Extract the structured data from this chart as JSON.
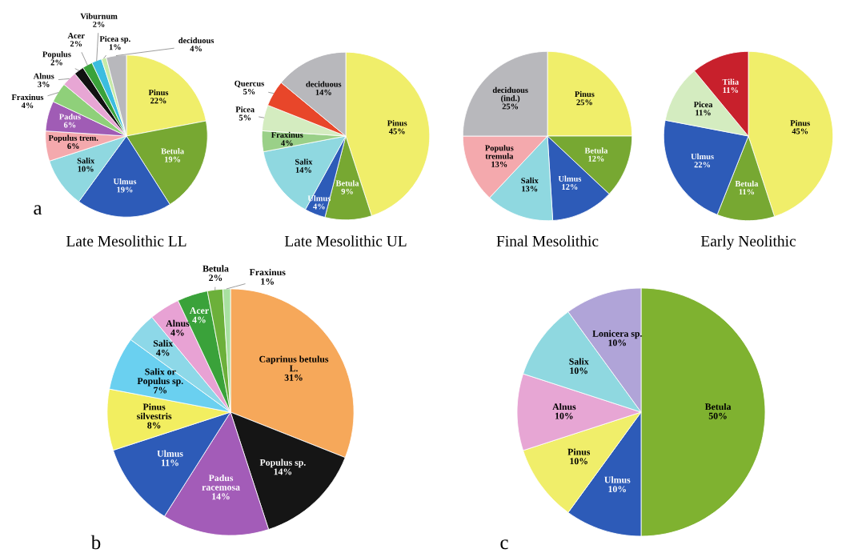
{
  "chart_data": [
    {
      "type": "pie",
      "title": "Late Mesolithic LL",
      "annotations": [
        "a"
      ],
      "data_labels": true,
      "categories": [
        "Pinus",
        "Betula",
        "Ulmus",
        "Salix",
        "Populus trem.",
        "Padus",
        "Fraxinus",
        "Alnus",
        "Populus",
        "Acer",
        "Viburnum",
        "Picea sp.",
        "deciduous"
      ],
      "values": [
        22,
        19,
        19,
        10,
        6,
        6,
        4,
        3,
        2,
        2,
        2,
        1,
        4
      ],
      "value_labels": [
        "22%",
        "19%",
        "19%",
        "10%",
        "6%",
        "6%",
        "4%",
        "3%",
        "2%",
        "2%",
        "2%",
        "1%",
        "4%"
      ],
      "colors": [
        "#f0ee6a",
        "#77a832",
        "#2d5bb8",
        "#8fd8e0",
        "#f4a9ad",
        "#a05cb5",
        "#8fd07a",
        "#e7a6d4",
        "#111111",
        "#3aa23a",
        "#3bbde0",
        "#c7eaa8",
        "#b8b8bc"
      ]
    },
    {
      "type": "pie",
      "title": "Late Mesolithic UL",
      "data_labels": true,
      "categories": [
        "Pinus",
        "Betula",
        "Ulmus",
        "Salix",
        "Fraxinus",
        "Picea",
        "Quercus",
        "deciduous"
      ],
      "values": [
        45,
        9,
        4,
        14,
        4,
        5,
        5,
        14
      ],
      "value_labels": [
        "45%",
        "9%",
        "4%",
        "14%",
        "4%",
        "5%",
        "5%",
        "14%"
      ],
      "colors": [
        "#f0ee6a",
        "#77a832",
        "#2d5bb8",
        "#8fd8e0",
        "#9ad088",
        "#d4ecc0",
        "#e8462a",
        "#b8b8bc"
      ]
    },
    {
      "type": "pie",
      "title": "Final Mesolithic",
      "data_labels": true,
      "categories": [
        "Pinus",
        "Betula",
        "Ulmus",
        "Salix",
        "Populus tremula",
        "deciduous (ind.)"
      ],
      "values": [
        25,
        12,
        12,
        13,
        13,
        25
      ],
      "value_labels": [
        "25%",
        "12%",
        "12%",
        "13%",
        "13%",
        "25%"
      ],
      "colors": [
        "#f0ee6a",
        "#77a832",
        "#2d5bb8",
        "#8fd8e0",
        "#f4a9ad",
        "#b8b8bc"
      ]
    },
    {
      "type": "pie",
      "title": "Early Neolithic",
      "data_labels": true,
      "categories": [
        "Pinus",
        "Betula",
        "Ulmus",
        "Picea",
        "Tilia"
      ],
      "values": [
        45,
        11,
        22,
        11,
        11
      ],
      "value_labels": [
        "45%",
        "11%",
        "22%",
        "11%",
        "11%"
      ],
      "colors": [
        "#f0ee6a",
        "#77a832",
        "#2d5bb8",
        "#d4ecc0",
        "#c8202c"
      ]
    },
    {
      "type": "pie",
      "annotations": [
        "b"
      ],
      "data_labels": true,
      "categories": [
        "Caprinus betulus L.",
        "Populus sp.",
        "Padus racemosa",
        "Ulmus",
        "Pinus silvestris",
        "Salix or Populus sp.",
        "Salix",
        "Alnus",
        "Acer",
        "Betula",
        "Fraxinus"
      ],
      "values": [
        31,
        14,
        14,
        11,
        8,
        7,
        4,
        4,
        4,
        2,
        1
      ],
      "value_labels": [
        "31%",
        "14%",
        "14%",
        "11%",
        "8%",
        "7%",
        "4%",
        "4%",
        "4%",
        "2%",
        "1%"
      ],
      "colors": [
        "#f6a85a",
        "#151515",
        "#a35cb8",
        "#2d5bb8",
        "#f2ee60",
        "#6ad0f0",
        "#8dd8e8",
        "#e8a2d4",
        "#3aa23a",
        "#6cb03a",
        "#a8e0a0"
      ]
    },
    {
      "type": "pie",
      "annotations": [
        "c"
      ],
      "data_labels": true,
      "categories": [
        "Betula",
        "Ulmus",
        "Pinus",
        "Alnus",
        "Salix",
        "Lonicera sp."
      ],
      "values": [
        50,
        10,
        10,
        10,
        10,
        10
      ],
      "value_labels": [
        "50%",
        "10%",
        "10%",
        "10%",
        "10%",
        "10%"
      ],
      "colors": [
        "#7fb230",
        "#2d5bb8",
        "#f0ee6a",
        "#e7a6d4",
        "#8fd8e0",
        "#b0a4d8"
      ]
    }
  ]
}
